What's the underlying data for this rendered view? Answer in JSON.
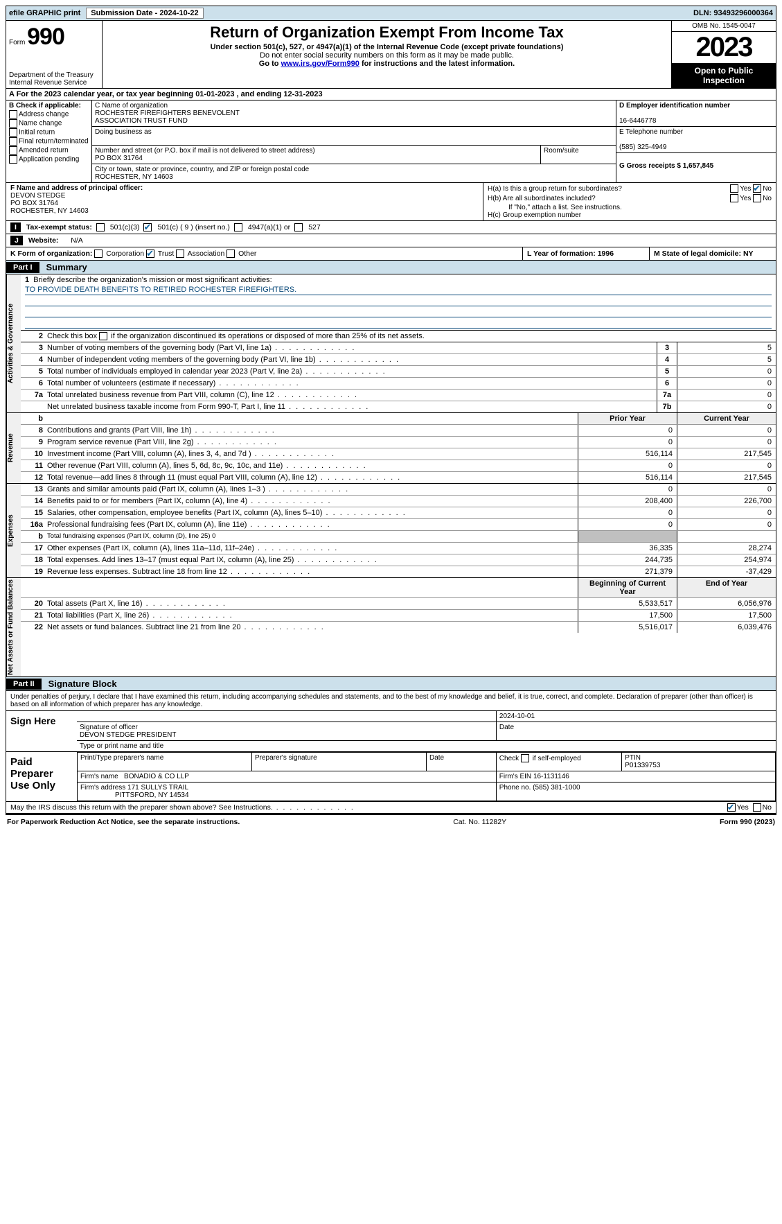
{
  "top": {
    "efile": "efile GRAPHIC print",
    "submission": "Submission Date - 2024-10-22",
    "dln": "DLN: 93493296000364"
  },
  "header": {
    "form_word": "Form",
    "form_num": "990",
    "title": "Return of Organization Exempt From Income Tax",
    "sub1": "Under section 501(c), 527, or 4947(a)(1) of the Internal Revenue Code (except private foundations)",
    "sub2": "Do not enter social security numbers on this form as it may be made public.",
    "sub3_pre": "Go to ",
    "sub3_link": "www.irs.gov/Form990",
    "sub3_post": " for instructions and the latest information.",
    "dept": "Department of the Treasury",
    "irs": "Internal Revenue Service",
    "omb": "OMB No. 1545-0047",
    "year": "2023",
    "open": "Open to Public Inspection"
  },
  "a_line": "A For the 2023 calendar year, or tax year beginning 01-01-2023    , and ending 12-31-2023",
  "b": {
    "label": "B Check if applicable:",
    "addr": "Address change",
    "name": "Name change",
    "init": "Initial return",
    "final": "Final return/terminated",
    "amend": "Amended return",
    "app": "Application pending"
  },
  "c": {
    "label": "C Name of organization",
    "name1": "ROCHESTER FIREFIGHTERS BENEVOLENT",
    "name2": "ASSOCIATION TRUST FUND",
    "dba": "Doing business as",
    "addr_label": "Number and street (or P.O. box if mail is not delivered to street address)",
    "room": "Room/suite",
    "addr": "PO BOX 31764",
    "city_label": "City or town, state or province, country, and ZIP or foreign postal code",
    "city": "ROCHESTER, NY  14603"
  },
  "d": {
    "label": "D Employer identification number",
    "val": "16-6446778"
  },
  "e": {
    "label": "E Telephone number",
    "val": "(585) 325-4949"
  },
  "g": {
    "label": "G Gross receipts $ 1,657,845"
  },
  "f": {
    "label": "F  Name and address of principal officer:",
    "name": "DEVON STEDGE",
    "addr1": "PO BOX 31764",
    "addr2": "ROCHESTER, NY  14603"
  },
  "h": {
    "a": "H(a)  Is this a group return for subordinates?",
    "b": "H(b)  Are all subordinates included?",
    "note": "If \"No,\" attach a list. See instructions.",
    "c": "H(c)  Group exemption number ",
    "yes": "Yes",
    "no": "No"
  },
  "i": {
    "label": "Tax-exempt status:",
    "o5013": "501(c)(3)",
    "o501c": "501(c) ( 9 ) (insert no.)",
    "o4947": "4947(a)(1) or",
    "o527": "527"
  },
  "j": {
    "label": "Website:",
    "val": "N/A"
  },
  "k": {
    "label": "K Form of organization:",
    "corp": "Corporation",
    "trust": "Trust",
    "assoc": "Association",
    "other": "Other"
  },
  "l": "L Year of formation: 1996",
  "m": "M State of legal domicile: NY",
  "part1": "Part I",
  "summary": "Summary",
  "s1": {
    "label": "Briefly describe the organization's mission or most significant activities:",
    "mission": "TO PROVIDE DEATH BENEFITS TO RETIRED ROCHESTER FIREFIGHTERS."
  },
  "s2": "Check this box       if the organization discontinued its operations or disposed of more than 25% of its net assets.",
  "rows_ag": [
    {
      "n": "3",
      "d": "Number of voting members of the governing body (Part VI, line 1a)",
      "b": "3",
      "v": "5"
    },
    {
      "n": "4",
      "d": "Number of independent voting members of the governing body (Part VI, line 1b)",
      "b": "4",
      "v": "5"
    },
    {
      "n": "5",
      "d": "Total number of individuals employed in calendar year 2023 (Part V, line 2a)",
      "b": "5",
      "v": "0"
    },
    {
      "n": "6",
      "d": "Total number of volunteers (estimate if necessary)",
      "b": "6",
      "v": "0"
    },
    {
      "n": "7a",
      "d": "Total unrelated business revenue from Part VIII, column (C), line 12",
      "b": "7a",
      "v": "0"
    },
    {
      "n": "",
      "d": "Net unrelated business taxable income from Form 990-T, Part I, line 11",
      "b": "7b",
      "v": "0"
    }
  ],
  "hdr_b": "b",
  "hdr_prior": "Prior Year",
  "hdr_curr": "Current Year",
  "rows_rev": [
    {
      "n": "8",
      "d": "Contributions and grants (Part VIII, line 1h)",
      "p": "0",
      "c": "0"
    },
    {
      "n": "9",
      "d": "Program service revenue (Part VIII, line 2g)",
      "p": "0",
      "c": "0"
    },
    {
      "n": "10",
      "d": "Investment income (Part VIII, column (A), lines 3, 4, and 7d )",
      "p": "516,114",
      "c": "217,545"
    },
    {
      "n": "11",
      "d": "Other revenue (Part VIII, column (A), lines 5, 6d, 8c, 9c, 10c, and 11e)",
      "p": "0",
      "c": "0"
    },
    {
      "n": "12",
      "d": "Total revenue—add lines 8 through 11 (must equal Part VIII, column (A), line 12)",
      "p": "516,114",
      "c": "217,545"
    }
  ],
  "rows_exp": [
    {
      "n": "13",
      "d": "Grants and similar amounts paid (Part IX, column (A), lines 1–3 )",
      "p": "0",
      "c": "0"
    },
    {
      "n": "14",
      "d": "Benefits paid to or for members (Part IX, column (A), line 4)",
      "p": "208,400",
      "c": "226,700"
    },
    {
      "n": "15",
      "d": "Salaries, other compensation, employee benefits (Part IX, column (A), lines 5–10)",
      "p": "0",
      "c": "0"
    },
    {
      "n": "16a",
      "d": "Professional fundraising fees (Part IX, column (A), line 11e)",
      "p": "0",
      "c": "0"
    },
    {
      "n": "b",
      "d": "Total fundraising expenses (Part IX, column (D), line 25) 0",
      "p": "",
      "c": "",
      "shade": true,
      "small": true
    },
    {
      "n": "17",
      "d": "Other expenses (Part IX, column (A), lines 11a–11d, 11f–24e)",
      "p": "36,335",
      "c": "28,274"
    },
    {
      "n": "18",
      "d": "Total expenses. Add lines 13–17 (must equal Part IX, column (A), line 25)",
      "p": "244,735",
      "c": "254,974"
    },
    {
      "n": "19",
      "d": "Revenue less expenses. Subtract line 18 from line 12",
      "p": "271,379",
      "c": "-37,429"
    }
  ],
  "hdr_beg": "Beginning of Current Year",
  "hdr_end": "End of Year",
  "rows_na": [
    {
      "n": "20",
      "d": "Total assets (Part X, line 16)",
      "p": "5,533,517",
      "c": "6,056,976"
    },
    {
      "n": "21",
      "d": "Total liabilities (Part X, line 26)",
      "p": "17,500",
      "c": "17,500"
    },
    {
      "n": "22",
      "d": "Net assets or fund balances. Subtract line 21 from line 20",
      "p": "5,516,017",
      "c": "6,039,476"
    }
  ],
  "vtabs": {
    "ag": "Activities & Governance",
    "rev": "Revenue",
    "exp": "Expenses",
    "na": "Net Assets or Fund Balances"
  },
  "part2": "Part II",
  "sigblk": "Signature Block",
  "perjury": "Under penalties of perjury, I declare that I have examined this return, including accompanying schedules and statements, and to the best of my knowledge and belief, it is true, correct, and complete. Declaration of preparer (other than officer) is based on all information of which preparer has any knowledge.",
  "sign": {
    "here": "Sign Here",
    "sig_off": "Signature of officer",
    "date": "Date",
    "date_val": "2024-10-01",
    "name": "DEVON STEDGE  PRESIDENT",
    "type": "Type or print name and title"
  },
  "paid": {
    "title": "Paid Preparer Use Only",
    "prep_name": "Print/Type preparer's name",
    "prep_sig": "Preparer's signature",
    "date": "Date",
    "self": "Check        if self-employed",
    "ptin_l": "PTIN",
    "ptin": "P01339753",
    "firm_l": "Firm's name      ",
    "firm": "BONADIO & CO LLP",
    "ein_l": "Firm's EIN  ",
    "ein": "16-1131146",
    "addr_l": "Firm's address ",
    "addr1": "171 SULLYS TRAIL",
    "addr2": "PITTSFORD, NY  14534",
    "phone_l": "Phone no. ",
    "phone": "(585) 381-1000"
  },
  "discuss": "May the IRS discuss this return with the preparer shown above? See Instructions.",
  "paperwork": "For Paperwork Reduction Act Notice, see the separate instructions.",
  "cat": "Cat. No. 11282Y",
  "form_foot": "Form 990 (2023)"
}
